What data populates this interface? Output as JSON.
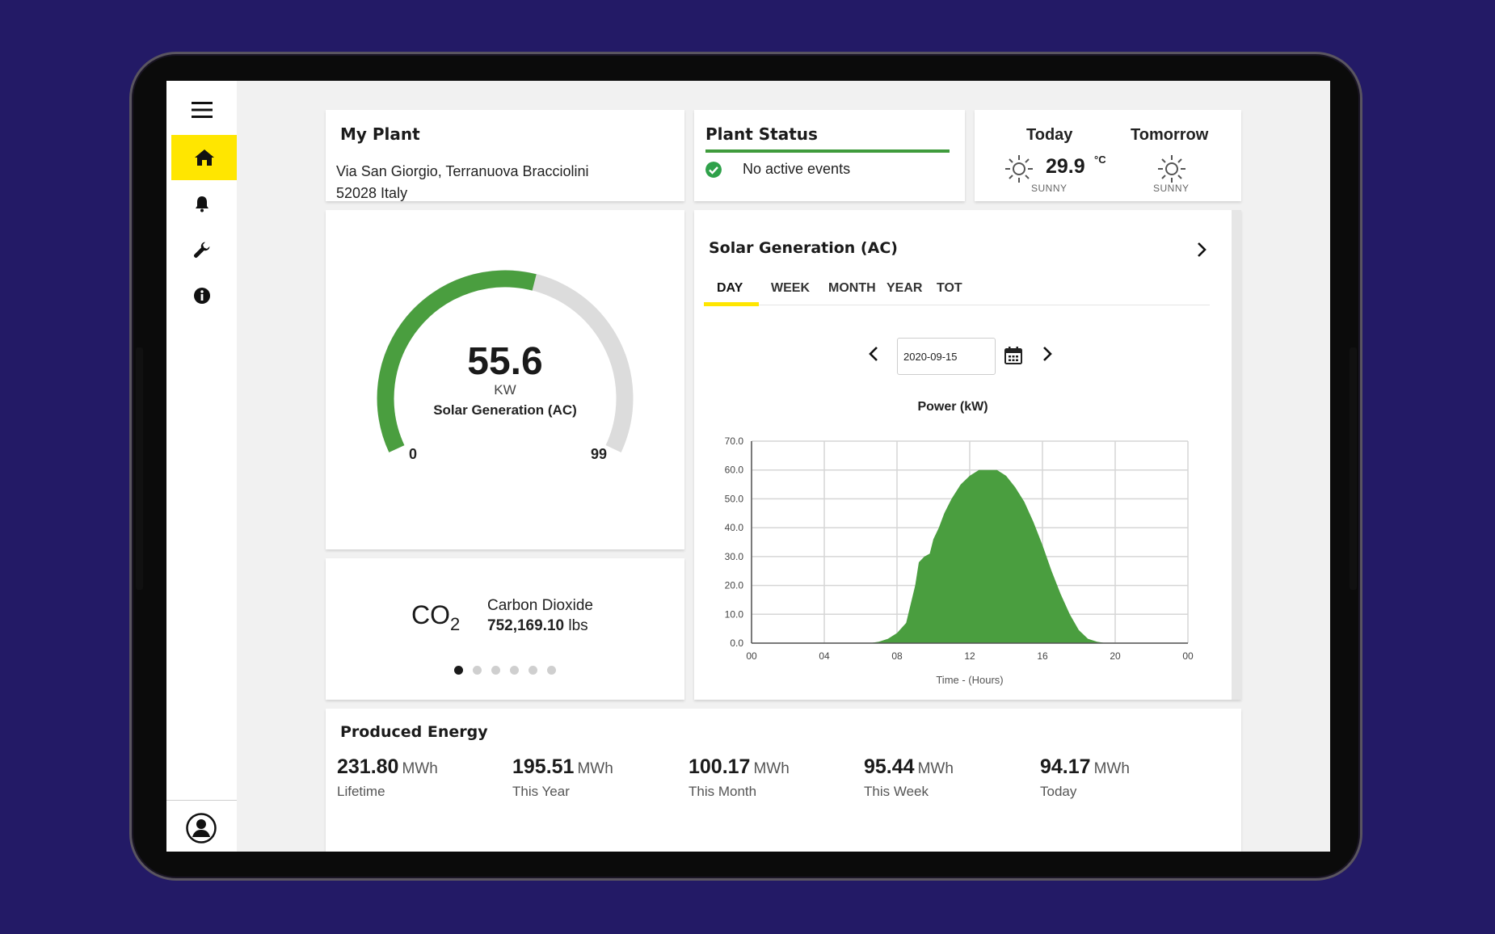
{
  "sidebar": {
    "items": [
      {
        "name": "menu-icon"
      },
      {
        "name": "home-icon",
        "active": true
      },
      {
        "name": "bell-icon"
      },
      {
        "name": "wrench-icon"
      },
      {
        "name": "info-icon"
      }
    ],
    "profile_icon": "user-icon"
  },
  "plant": {
    "title": "My Plant",
    "address_line1": "Via San Giorgio, Terranuova Bracciolini",
    "address_line2": "52028 Italy"
  },
  "status": {
    "title": "Plant Status",
    "message": "No active events",
    "color": "#3f9b3c"
  },
  "weather": {
    "today_label": "Today",
    "today_temp": "29.9",
    "today_unit": "°C",
    "today_condition": "SUNNY",
    "tomorrow_label": "Tomorrow",
    "tomorrow_condition": "SUNNY"
  },
  "gauge": {
    "value": "55.6",
    "value_num": 55.6,
    "unit": "KW",
    "label": "Solar Generation (AC)",
    "min": "0",
    "max": "99",
    "min_num": 0,
    "max_num": 99,
    "fill_color": "#4a9e3f",
    "track_color": "#dcdcdc"
  },
  "co2": {
    "symbol": "CO",
    "subscript": "2",
    "name": "Carbon Dioxide",
    "value": "752,169.10",
    "unit": "lbs",
    "pages": 6,
    "current_page": 0
  },
  "generation": {
    "title": "Solar Generation (AC)",
    "tabs": [
      "DAY",
      "WEEK",
      "MONTH",
      "YEAR",
      "TOT"
    ],
    "active_tab": "DAY",
    "date": "2020-09-15",
    "accent": "#ffe600"
  },
  "chart_data": {
    "type": "area",
    "title": "Power (kW)",
    "xlabel": "Time - (Hours)",
    "ylabel": "",
    "x_ticks": [
      "00",
      "04",
      "08",
      "12",
      "16",
      "20",
      "00"
    ],
    "y_ticks": [
      "0.0",
      "10.0",
      "20.0",
      "30.0",
      "40.0",
      "50.0",
      "60.0",
      "70.0"
    ],
    "xlim": [
      0,
      24
    ],
    "ylim": [
      0,
      70
    ],
    "grid": true,
    "color": "#4a9e3f",
    "series": [
      {
        "x": [
          0,
          6.5,
          7,
          7.5,
          8,
          8.5,
          9,
          9.2,
          9.5,
          9.8,
          10,
          10.3,
          10.6,
          11,
          11.5,
          12,
          12.5,
          13,
          13.5,
          14,
          14.5,
          15,
          15.5,
          16,
          16.5,
          17,
          17.5,
          18,
          18.5,
          19,
          19.5,
          24
        ],
        "y": [
          0,
          0,
          0.5,
          1.5,
          3.5,
          7,
          20,
          28,
          30,
          31,
          36,
          40,
          45,
          50,
          55,
          58,
          60,
          60,
          60,
          58,
          54,
          49,
          42,
          34,
          25,
          17,
          10,
          4.5,
          1.5,
          0.5,
          0,
          0
        ]
      }
    ]
  },
  "energy": {
    "title": "Produced Energy",
    "stats": [
      {
        "value": "231.80",
        "unit": "MWh",
        "label": "Lifetime"
      },
      {
        "value": "195.51",
        "unit": "MWh",
        "label": "This Year"
      },
      {
        "value": "100.17",
        "unit": "MWh",
        "label": "This Month"
      },
      {
        "value": "95.44",
        "unit": "MWh",
        "label": "This Week"
      },
      {
        "value": "94.17",
        "unit": "MWh",
        "label": "Today"
      }
    ]
  }
}
